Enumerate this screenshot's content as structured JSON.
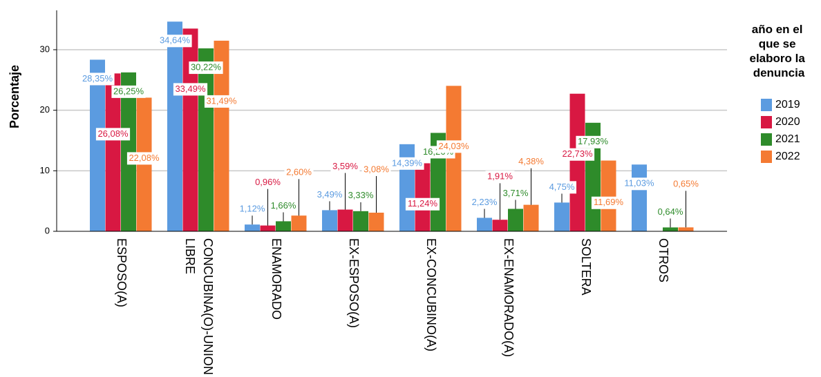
{
  "chart_data": {
    "type": "bar",
    "ylabel": "Porcentaje",
    "legend_title": "año en el que se elaboro la denuncia",
    "legend": "right",
    "grid": true,
    "categories": [
      "ESPOSO(A)",
      "CONCUBINA(O)-UNION LIBRE",
      "ENAMORADO",
      "EX-ESPOSO(A)",
      "EX-CONCUBINO(A)",
      "EX-ENAMORADO(A)",
      "SOLTERA",
      "OTROS"
    ],
    "ylim": [
      0,
      36.5
    ],
    "yticks": [
      0,
      10,
      20,
      30
    ],
    "series": [
      {
        "name": "2019",
        "color": "#5b9be0",
        "values": [
          28.35,
          34.64,
          1.12,
          3.49,
          14.39,
          2.23,
          4.75,
          11.03
        ],
        "value_labels": [
          "28,35%",
          "34,64%",
          "1,12%",
          "3,49%",
          "14,39%",
          "2,23%",
          "4,75%",
          "11,03%"
        ]
      },
      {
        "name": "2020",
        "color": "#d81842",
        "values": [
          26.08,
          33.49,
          0.96,
          3.59,
          11.24,
          1.91,
          22.73,
          null
        ],
        "value_labels": [
          "26,08%",
          "33,49%",
          "0,96%",
          "3,59%",
          "11,24%",
          "1,91%",
          "22,73%",
          null
        ]
      },
      {
        "name": "2021",
        "color": "#2e8b2a",
        "values": [
          26.25,
          30.22,
          1.66,
          3.33,
          16.26,
          3.71,
          17.93,
          0.64
        ],
        "value_labels": [
          "26,25%",
          "30,22%",
          "1,66%",
          "3,33%",
          "16,26%",
          "3,71%",
          "17,93%",
          "0,64%"
        ]
      },
      {
        "name": "2022",
        "color": "#f47a32",
        "values": [
          22.08,
          31.49,
          2.6,
          3.08,
          24.03,
          4.38,
          11.69,
          0.65
        ],
        "value_labels": [
          "22,08%",
          "31,49%",
          "2,60%",
          "3,08%",
          "24,03%",
          "4,38%",
          "11,69%",
          "0,65%"
        ]
      }
    ]
  }
}
